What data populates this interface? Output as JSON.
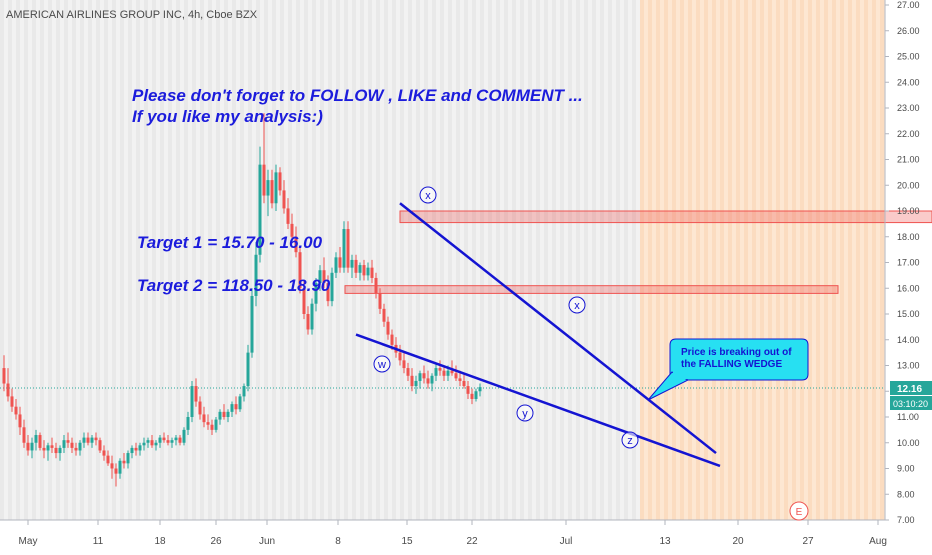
{
  "header": {
    "symbol_title": "AMERICAN AIRLINES GROUP INC, 4h, Cboe BZX"
  },
  "chart_data": {
    "type": "candlestick",
    "title": "AMERICAN AIRLINES GROUP INC, 4h, Cboe BZX",
    "ylim": [
      7.0,
      27.0
    ],
    "y_ticks": [
      "27.00",
      "26.00",
      "25.00",
      "24.00",
      "23.00",
      "22.00",
      "21.00",
      "20.00",
      "19.00",
      "18.00",
      "17.00",
      "16.00",
      "15.00",
      "14.00",
      "13.00",
      "12.00",
      "11.00",
      "10.00",
      "9.00",
      "8.00",
      "7.00"
    ],
    "x_ticks": [
      "May",
      "11",
      "18",
      "26",
      "Jun",
      "8",
      "15",
      "22",
      "Jul",
      "13",
      "20",
      "27",
      "Aug"
    ],
    "last_price": "12.16",
    "countdown": "03:10:20",
    "colors": {
      "up": "#26a69a",
      "down": "#ef5350",
      "line": "#1414d2",
      "zone": "#ef5350"
    },
    "candles": [
      {
        "o": 12.9,
        "h": 13.4,
        "l": 12.0,
        "c": 12.3
      },
      {
        "o": 12.3,
        "h": 12.9,
        "l": 11.6,
        "c": 11.8
      },
      {
        "o": 11.8,
        "h": 12.1,
        "l": 11.2,
        "c": 11.4
      },
      {
        "o": 11.4,
        "h": 11.7,
        "l": 10.9,
        "c": 11.1
      },
      {
        "o": 11.1,
        "h": 11.4,
        "l": 10.3,
        "c": 10.6
      },
      {
        "o": 10.6,
        "h": 10.9,
        "l": 9.8,
        "c": 10.0
      },
      {
        "o": 10.0,
        "h": 10.3,
        "l": 9.5,
        "c": 9.7
      },
      {
        "o": 9.7,
        "h": 10.2,
        "l": 9.4,
        "c": 10.0
      },
      {
        "o": 10.0,
        "h": 10.5,
        "l": 9.7,
        "c": 10.3
      },
      {
        "o": 10.3,
        "h": 10.4,
        "l": 9.7,
        "c": 9.8
      },
      {
        "o": 9.8,
        "h": 10.1,
        "l": 9.4,
        "c": 9.7
      },
      {
        "o": 9.7,
        "h": 10.0,
        "l": 9.3,
        "c": 9.9
      },
      {
        "o": 9.9,
        "h": 10.2,
        "l": 9.6,
        "c": 9.8
      },
      {
        "o": 9.8,
        "h": 10.0,
        "l": 9.4,
        "c": 9.6
      },
      {
        "o": 9.6,
        "h": 9.9,
        "l": 9.3,
        "c": 9.8
      },
      {
        "o": 9.8,
        "h": 10.3,
        "l": 9.6,
        "c": 10.1
      },
      {
        "o": 10.1,
        "h": 10.4,
        "l": 9.8,
        "c": 10.0
      },
      {
        "o": 10.0,
        "h": 10.2,
        "l": 9.6,
        "c": 9.8
      },
      {
        "o": 9.8,
        "h": 10.0,
        "l": 9.5,
        "c": 9.7
      },
      {
        "o": 9.7,
        "h": 10.1,
        "l": 9.5,
        "c": 10.0
      },
      {
        "o": 10.0,
        "h": 10.4,
        "l": 9.8,
        "c": 10.2
      },
      {
        "o": 10.2,
        "h": 10.4,
        "l": 9.9,
        "c": 10.0
      },
      {
        "o": 10.0,
        "h": 10.3,
        "l": 9.8,
        "c": 10.2
      },
      {
        "o": 10.2,
        "h": 10.4,
        "l": 9.9,
        "c": 10.1
      },
      {
        "o": 10.1,
        "h": 10.2,
        "l": 9.6,
        "c": 9.7
      },
      {
        "o": 9.7,
        "h": 9.9,
        "l": 9.3,
        "c": 9.5
      },
      {
        "o": 9.5,
        "h": 9.7,
        "l": 9.1,
        "c": 9.2
      },
      {
        "o": 9.2,
        "h": 9.5,
        "l": 8.6,
        "c": 9.0
      },
      {
        "o": 9.0,
        "h": 9.2,
        "l": 8.3,
        "c": 8.8
      },
      {
        "o": 8.8,
        "h": 9.4,
        "l": 8.6,
        "c": 9.3
      },
      {
        "o": 9.3,
        "h": 9.6,
        "l": 9.0,
        "c": 9.2
      },
      {
        "o": 9.2,
        "h": 9.7,
        "l": 9.0,
        "c": 9.6
      },
      {
        "o": 9.6,
        "h": 9.9,
        "l": 9.4,
        "c": 9.8
      },
      {
        "o": 9.8,
        "h": 10.0,
        "l": 9.5,
        "c": 9.7
      },
      {
        "o": 9.7,
        "h": 10.0,
        "l": 9.5,
        "c": 9.9
      },
      {
        "o": 9.9,
        "h": 10.2,
        "l": 9.7,
        "c": 10.0
      },
      {
        "o": 10.0,
        "h": 10.2,
        "l": 9.8,
        "c": 10.1
      },
      {
        "o": 10.1,
        "h": 10.3,
        "l": 9.8,
        "c": 9.9
      },
      {
        "o": 9.9,
        "h": 10.1,
        "l": 9.7,
        "c": 10.0
      },
      {
        "o": 10.0,
        "h": 10.3,
        "l": 9.8,
        "c": 10.2
      },
      {
        "o": 10.2,
        "h": 10.4,
        "l": 10.0,
        "c": 10.1
      },
      {
        "o": 10.1,
        "h": 10.3,
        "l": 9.9,
        "c": 10.0
      },
      {
        "o": 10.0,
        "h": 10.2,
        "l": 9.8,
        "c": 10.1
      },
      {
        "o": 10.1,
        "h": 10.3,
        "l": 9.9,
        "c": 10.2
      },
      {
        "o": 10.2,
        "h": 10.3,
        "l": 9.9,
        "c": 10.0
      },
      {
        "o": 10.0,
        "h": 10.6,
        "l": 9.9,
        "c": 10.5
      },
      {
        "o": 10.5,
        "h": 11.2,
        "l": 10.3,
        "c": 11.0
      },
      {
        "o": 11.0,
        "h": 12.4,
        "l": 10.8,
        "c": 12.2
      },
      {
        "o": 12.2,
        "h": 12.5,
        "l": 11.4,
        "c": 11.6
      },
      {
        "o": 11.6,
        "h": 11.8,
        "l": 10.9,
        "c": 11.1
      },
      {
        "o": 11.1,
        "h": 11.4,
        "l": 10.6,
        "c": 10.8
      },
      {
        "o": 10.8,
        "h": 11.1,
        "l": 10.5,
        "c": 10.7
      },
      {
        "o": 10.7,
        "h": 10.9,
        "l": 10.3,
        "c": 10.5
      },
      {
        "o": 10.5,
        "h": 11.0,
        "l": 10.4,
        "c": 10.9
      },
      {
        "o": 10.9,
        "h": 11.3,
        "l": 10.7,
        "c": 11.2
      },
      {
        "o": 11.2,
        "h": 11.5,
        "l": 10.9,
        "c": 11.0
      },
      {
        "o": 11.0,
        "h": 11.3,
        "l": 10.8,
        "c": 11.2
      },
      {
        "o": 11.2,
        "h": 11.6,
        "l": 11.0,
        "c": 11.5
      },
      {
        "o": 11.5,
        "h": 11.8,
        "l": 11.1,
        "c": 11.3
      },
      {
        "o": 11.3,
        "h": 11.9,
        "l": 11.2,
        "c": 11.8
      },
      {
        "o": 11.8,
        "h": 12.3,
        "l": 11.6,
        "c": 12.2
      },
      {
        "o": 12.2,
        "h": 13.8,
        "l": 12.0,
        "c": 13.5
      },
      {
        "o": 13.5,
        "h": 16.0,
        "l": 13.3,
        "c": 15.7
      },
      {
        "o": 15.7,
        "h": 17.8,
        "l": 15.3,
        "c": 17.3
      },
      {
        "o": 17.3,
        "h": 21.5,
        "l": 17.0,
        "c": 20.8
      },
      {
        "o": 20.8,
        "h": 22.8,
        "l": 19.3,
        "c": 19.6
      },
      {
        "o": 19.6,
        "h": 20.6,
        "l": 18.8,
        "c": 20.2
      },
      {
        "o": 20.2,
        "h": 20.6,
        "l": 19.1,
        "c": 19.3
      },
      {
        "o": 19.3,
        "h": 20.8,
        "l": 19.0,
        "c": 20.5
      },
      {
        "o": 20.5,
        "h": 20.7,
        "l": 19.6,
        "c": 19.8
      },
      {
        "o": 19.8,
        "h": 20.2,
        "l": 18.9,
        "c": 19.1
      },
      {
        "o": 19.1,
        "h": 19.5,
        "l": 18.3,
        "c": 18.5
      },
      {
        "o": 18.5,
        "h": 18.9,
        "l": 17.8,
        "c": 18.0
      },
      {
        "o": 18.0,
        "h": 18.4,
        "l": 17.2,
        "c": 17.4
      },
      {
        "o": 17.4,
        "h": 17.6,
        "l": 15.8,
        "c": 16.0
      },
      {
        "o": 16.0,
        "h": 16.3,
        "l": 14.8,
        "c": 15.0
      },
      {
        "o": 15.0,
        "h": 15.3,
        "l": 14.2,
        "c": 14.4
      },
      {
        "o": 14.4,
        "h": 15.6,
        "l": 14.2,
        "c": 15.4
      },
      {
        "o": 15.4,
        "h": 16.4,
        "l": 15.1,
        "c": 16.2
      },
      {
        "o": 16.2,
        "h": 16.9,
        "l": 15.9,
        "c": 16.7
      },
      {
        "o": 16.7,
        "h": 17.2,
        "l": 16.0,
        "c": 16.2
      },
      {
        "o": 16.2,
        "h": 16.5,
        "l": 15.3,
        "c": 15.5
      },
      {
        "o": 15.5,
        "h": 16.8,
        "l": 15.3,
        "c": 16.6
      },
      {
        "o": 16.6,
        "h": 17.4,
        "l": 16.4,
        "c": 17.2
      },
      {
        "o": 17.2,
        "h": 17.6,
        "l": 16.6,
        "c": 16.8
      },
      {
        "o": 16.8,
        "h": 18.6,
        "l": 16.6,
        "c": 18.3
      },
      {
        "o": 18.3,
        "h": 18.6,
        "l": 16.6,
        "c": 16.8
      },
      {
        "o": 16.8,
        "h": 17.3,
        "l": 16.4,
        "c": 17.1
      },
      {
        "o": 17.1,
        "h": 17.3,
        "l": 16.4,
        "c": 16.6
      },
      {
        "o": 16.6,
        "h": 17.0,
        "l": 16.3,
        "c": 16.9
      },
      {
        "o": 16.9,
        "h": 17.1,
        "l": 16.3,
        "c": 16.5
      },
      {
        "o": 16.5,
        "h": 17.0,
        "l": 16.3,
        "c": 16.8
      },
      {
        "o": 16.8,
        "h": 17.1,
        "l": 16.2,
        "c": 16.4
      },
      {
        "o": 16.4,
        "h": 16.6,
        "l": 15.6,
        "c": 15.8
      },
      {
        "o": 15.8,
        "h": 16.0,
        "l": 15.0,
        "c": 15.2
      },
      {
        "o": 15.2,
        "h": 15.4,
        "l": 14.5,
        "c": 14.7
      },
      {
        "o": 14.7,
        "h": 14.9,
        "l": 14.0,
        "c": 14.2
      },
      {
        "o": 14.2,
        "h": 14.4,
        "l": 13.6,
        "c": 13.8
      },
      {
        "o": 13.8,
        "h": 14.1,
        "l": 13.3,
        "c": 13.5
      },
      {
        "o": 13.5,
        "h": 13.8,
        "l": 13.0,
        "c": 13.2
      },
      {
        "o": 13.2,
        "h": 13.5,
        "l": 12.7,
        "c": 12.9
      },
      {
        "o": 12.9,
        "h": 13.1,
        "l": 12.4,
        "c": 12.6
      },
      {
        "o": 12.6,
        "h": 12.9,
        "l": 12.0,
        "c": 12.2
      },
      {
        "o": 12.2,
        "h": 12.6,
        "l": 11.9,
        "c": 12.4
      },
      {
        "o": 12.4,
        "h": 12.8,
        "l": 12.1,
        "c": 12.7
      },
      {
        "o": 12.7,
        "h": 13.0,
        "l": 12.3,
        "c": 12.5
      },
      {
        "o": 12.5,
        "h": 12.8,
        "l": 12.1,
        "c": 12.3
      },
      {
        "o": 12.3,
        "h": 12.7,
        "l": 12.0,
        "c": 12.6
      },
      {
        "o": 12.6,
        "h": 13.1,
        "l": 12.4,
        "c": 12.9
      },
      {
        "o": 12.9,
        "h": 13.2,
        "l": 12.6,
        "c": 12.8
      },
      {
        "o": 12.8,
        "h": 13.0,
        "l": 12.4,
        "c": 12.6
      },
      {
        "o": 12.6,
        "h": 13.0,
        "l": 12.4,
        "c": 12.8
      },
      {
        "o": 12.8,
        "h": 13.2,
        "l": 12.6,
        "c": 12.7
      },
      {
        "o": 12.7,
        "h": 13.0,
        "l": 12.4,
        "c": 12.5
      },
      {
        "o": 12.5,
        "h": 12.8,
        "l": 12.2,
        "c": 12.4
      },
      {
        "o": 12.4,
        "h": 12.7,
        "l": 12.1,
        "c": 12.2
      },
      {
        "o": 12.2,
        "h": 12.4,
        "l": 11.7,
        "c": 11.9
      },
      {
        "o": 11.9,
        "h": 12.1,
        "l": 11.5,
        "c": 11.7
      },
      {
        "o": 11.7,
        "h": 12.1,
        "l": 11.6,
        "c": 12.0
      },
      {
        "o": 12.0,
        "h": 12.3,
        "l": 11.8,
        "c": 12.16
      }
    ],
    "annotations": {
      "line1": "Please don't forget  to FOLLOW , LIKE and COMMENT ...",
      "line2": "If you like my analysis:)",
      "target1": "Target 1 =  15.70 - 16.00",
      "target2": "Target 2 =  118.50 - 18.90",
      "callout": "Price is breaking out of the FALLING WEDGE",
      "wave_labels": [
        "x",
        "x",
        "w",
        "y",
        "z"
      ],
      "earnings_marker": "E"
    },
    "resistance_zones": [
      [
        18.55,
        19.0
      ],
      [
        15.8,
        16.1
      ]
    ],
    "wedge_upper": [
      {
        "bar": 99,
        "price": 19.3
      },
      {
        "bar": 163,
        "price": 9.6
      }
    ],
    "wedge_lower": [
      {
        "bar": 88,
        "price": 14.2
      },
      {
        "bar": 164,
        "price": 9.1
      }
    ]
  }
}
